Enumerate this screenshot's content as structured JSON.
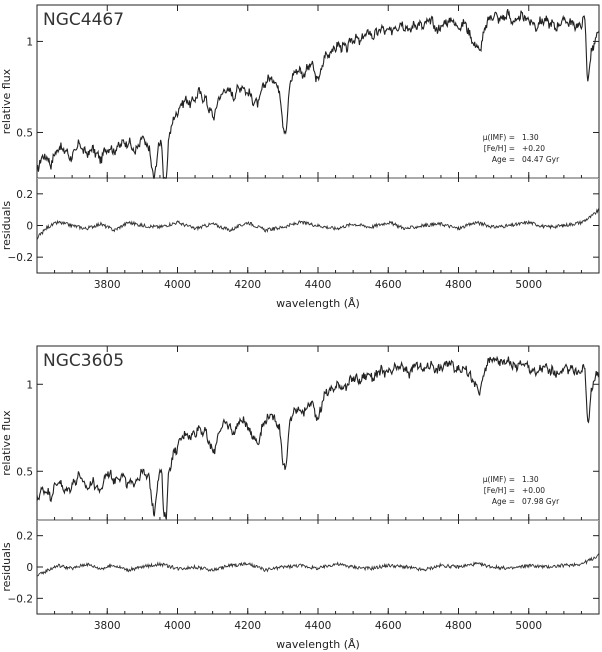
{
  "chart_data": [
    {
      "type": "line",
      "galaxy": "NGC4467",
      "params": [
        {
          "label": "μ(IMF) =",
          "value": "1.30"
        },
        {
          "label": "[Fe/H] =",
          "value": "+0.20"
        },
        {
          "label": "Age =",
          "value": "04.47 Gyr"
        }
      ],
      "xlabel": "wavelength (Å)",
      "xlim": [
        3600,
        5200
      ],
      "xticks": [
        3800,
        4000,
        4200,
        4400,
        4600,
        4800,
        5000
      ],
      "spectrum": {
        "ylabel": "relative flux",
        "ylim": [
          0.25,
          1.2
        ],
        "yticks": [
          0.5,
          1
        ],
        "x": [
          3600,
          3620,
          3640,
          3660,
          3680,
          3700,
          3720,
          3740,
          3760,
          3780,
          3800,
          3820,
          3840,
          3860,
          3880,
          3900,
          3920,
          3930,
          3934,
          3945,
          3955,
          3960,
          3968,
          3975,
          3985,
          4000,
          4020,
          4040,
          4060,
          4080,
          4102,
          4120,
          4140,
          4160,
          4180,
          4200,
          4227,
          4250,
          4270,
          4290,
          4300,
          4310,
          4320,
          4340,
          4360,
          4380,
          4400,
          4420,
          4440,
          4460,
          4480,
          4500,
          4520,
          4540,
          4560,
          4580,
          4600,
          4620,
          4640,
          4660,
          4680,
          4700,
          4720,
          4740,
          4760,
          4780,
          4800,
          4820,
          4840,
          4861,
          4880,
          4900,
          4920,
          4940,
          4960,
          4980,
          5000,
          5020,
          5040,
          5060,
          5080,
          5100,
          5120,
          5140,
          5160,
          5167,
          5172,
          5178,
          5190,
          5200
        ],
        "y": [
          0.3,
          0.38,
          0.33,
          0.42,
          0.4,
          0.36,
          0.44,
          0.38,
          0.41,
          0.35,
          0.42,
          0.4,
          0.44,
          0.45,
          0.39,
          0.47,
          0.4,
          0.28,
          0.22,
          0.43,
          0.45,
          0.25,
          0.22,
          0.48,
          0.55,
          0.62,
          0.68,
          0.66,
          0.72,
          0.68,
          0.58,
          0.7,
          0.74,
          0.7,
          0.76,
          0.72,
          0.65,
          0.78,
          0.8,
          0.74,
          0.55,
          0.5,
          0.78,
          0.85,
          0.82,
          0.88,
          0.78,
          0.92,
          0.95,
          0.98,
          0.96,
          1.02,
          1.0,
          1.05,
          1.03,
          1.07,
          1.05,
          1.08,
          1.1,
          1.06,
          1.1,
          1.08,
          1.12,
          1.06,
          1.1,
          1.12,
          1.08,
          1.1,
          1.0,
          0.95,
          1.1,
          1.15,
          1.12,
          1.15,
          1.1,
          1.14,
          1.12,
          1.08,
          1.12,
          1.1,
          1.08,
          1.12,
          1.1,
          1.08,
          1.12,
          0.8,
          0.82,
          0.95,
          1.0,
          1.05
        ]
      },
      "residuals": {
        "ylabel": "residuals",
        "ylim": [
          -0.3,
          0.3
        ],
        "yticks": [
          -0.2,
          0,
          0.2
        ],
        "x": [
          3600,
          3630,
          3660,
          3700,
          3740,
          3780,
          3820,
          3860,
          3900,
          3950,
          4000,
          4050,
          4100,
          4150,
          4200,
          4250,
          4300,
          4350,
          4400,
          4450,
          4500,
          4550,
          4600,
          4650,
          4700,
          4750,
          4800,
          4850,
          4900,
          4950,
          5000,
          5050,
          5100,
          5150,
          5180,
          5200
        ],
        "y": [
          -0.08,
          -0.01,
          0.02,
          0.0,
          -0.02,
          0.01,
          -0.03,
          0.02,
          0.0,
          -0.01,
          0.02,
          -0.02,
          0.01,
          -0.03,
          0.02,
          -0.03,
          -0.01,
          0.02,
          0.0,
          -0.02,
          0.01,
          -0.01,
          0.02,
          -0.02,
          0.0,
          0.01,
          -0.02,
          0.02,
          -0.01,
          0.0,
          0.02,
          -0.01,
          0.0,
          0.02,
          0.06,
          0.1
        ]
      }
    },
    {
      "type": "line",
      "galaxy": "NGC3605",
      "params": [
        {
          "label": "μ(IMF) =",
          "value": "1.30"
        },
        {
          "label": "[Fe/H] =",
          "value": "+0.00"
        },
        {
          "label": "Age =",
          "value": "07.98 Gyr"
        }
      ],
      "xlabel": "wavelength (Å)",
      "xlim": [
        3600,
        5200
      ],
      "xticks": [
        3800,
        4000,
        4200,
        4400,
        4600,
        4800,
        5000
      ],
      "spectrum": {
        "ylabel": "relative flux",
        "ylim": [
          0.22,
          1.22
        ],
        "yticks": [
          0.5,
          1
        ],
        "x": [
          3600,
          3620,
          3640,
          3660,
          3680,
          3700,
          3720,
          3740,
          3760,
          3780,
          3800,
          3820,
          3840,
          3860,
          3880,
          3900,
          3920,
          3930,
          3934,
          3945,
          3955,
          3960,
          3968,
          3975,
          3985,
          4000,
          4020,
          4040,
          4060,
          4080,
          4102,
          4120,
          4140,
          4160,
          4180,
          4200,
          4227,
          4250,
          4270,
          4290,
          4300,
          4310,
          4320,
          4340,
          4360,
          4380,
          4400,
          4420,
          4440,
          4460,
          4480,
          4500,
          4520,
          4540,
          4560,
          4580,
          4600,
          4620,
          4640,
          4660,
          4680,
          4700,
          4720,
          4740,
          4760,
          4780,
          4800,
          4820,
          4840,
          4861,
          4880,
          4900,
          4920,
          4940,
          4960,
          4980,
          5000,
          5020,
          5040,
          5060,
          5080,
          5100,
          5120,
          5140,
          5160,
          5167,
          5172,
          5178,
          5190,
          5200
        ],
        "y": [
          0.35,
          0.4,
          0.36,
          0.45,
          0.38,
          0.42,
          0.48,
          0.4,
          0.44,
          0.38,
          0.5,
          0.45,
          0.48,
          0.42,
          0.44,
          0.5,
          0.45,
          0.3,
          0.24,
          0.48,
          0.5,
          0.27,
          0.24,
          0.5,
          0.58,
          0.64,
          0.72,
          0.7,
          0.75,
          0.72,
          0.6,
          0.74,
          0.78,
          0.72,
          0.8,
          0.76,
          0.66,
          0.8,
          0.82,
          0.76,
          0.55,
          0.52,
          0.8,
          0.86,
          0.84,
          0.9,
          0.8,
          0.95,
          0.97,
          1.0,
          0.98,
          1.04,
          1.02,
          1.06,
          1.04,
          1.08,
          1.06,
          1.09,
          1.1,
          1.06,
          1.12,
          1.08,
          1.12,
          1.08,
          1.11,
          1.12,
          1.08,
          1.1,
          1.02,
          0.95,
          1.12,
          1.15,
          1.12,
          1.14,
          1.1,
          1.12,
          1.1,
          1.06,
          1.1,
          1.08,
          1.06,
          1.08,
          1.1,
          1.06,
          1.1,
          0.78,
          0.8,
          0.98,
          1.04,
          1.08
        ]
      },
      "residuals": {
        "ylabel": "residuals",
        "ylim": [
          -0.3,
          0.3
        ],
        "yticks": [
          -0.2,
          0,
          0.2
        ],
        "x": [
          3600,
          3630,
          3660,
          3700,
          3740,
          3780,
          3820,
          3860,
          3900,
          3950,
          4000,
          4050,
          4100,
          4150,
          4200,
          4250,
          4300,
          4350,
          4400,
          4450,
          4500,
          4550,
          4600,
          4650,
          4700,
          4750,
          4800,
          4850,
          4900,
          4950,
          5000,
          5050,
          5100,
          5150,
          5180,
          5200
        ],
        "y": [
          -0.06,
          -0.02,
          0.01,
          -0.01,
          0.02,
          -0.01,
          0.01,
          -0.02,
          0.0,
          0.02,
          -0.01,
          0.0,
          -0.02,
          0.01,
          0.02,
          -0.02,
          0.0,
          0.01,
          -0.01,
          0.02,
          0.0,
          -0.01,
          0.01,
          0.0,
          -0.02,
          0.01,
          0.0,
          0.02,
          0.0,
          -0.01,
          0.01,
          0.0,
          0.01,
          0.02,
          0.05,
          0.08
        ]
      }
    }
  ]
}
